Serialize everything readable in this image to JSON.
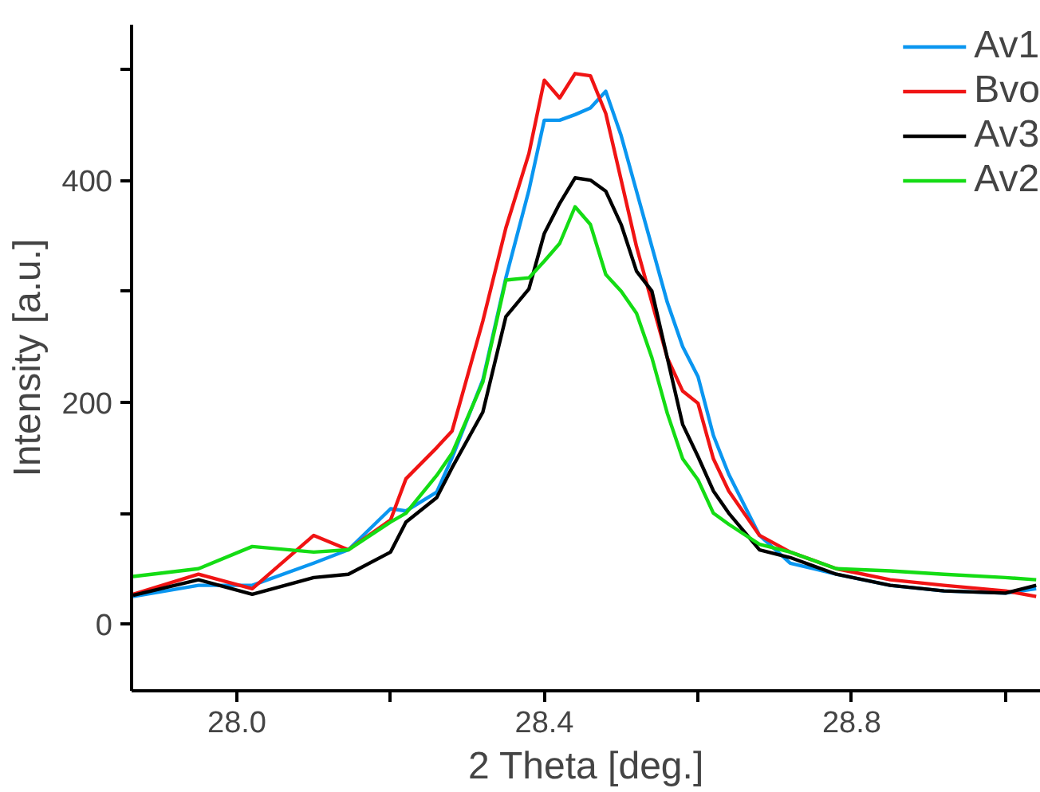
{
  "chart_data": {
    "type": "line",
    "xlabel": "2 Theta [deg.]",
    "ylabel": "Intensity [a.u.]",
    "x": [
      27.865,
      27.95,
      28.02,
      28.1,
      28.145,
      28.2,
      28.22,
      28.26,
      28.28,
      28.32,
      28.35,
      28.38,
      28.4,
      28.42,
      28.44,
      28.46,
      28.48,
      28.5,
      28.52,
      28.54,
      28.56,
      28.58,
      28.6,
      28.62,
      28.64,
      28.68,
      28.72,
      28.78,
      28.85,
      28.92,
      29.0,
      29.04
    ],
    "series": [
      {
        "name": "Av1",
        "color": "#0a96f0",
        "values": [
          25,
          35,
          35,
          55,
          67,
          104,
          102,
          119,
          150,
          220,
          312,
          391,
          454,
          454,
          459,
          465,
          480,
          440,
          390,
          340,
          290,
          250,
          223,
          170,
          135,
          80,
          55,
          45,
          35,
          30,
          28,
          32
        ]
      },
      {
        "name": "Bvo",
        "color": "#f01414",
        "values": [
          27,
          45,
          32,
          80,
          67,
          94,
          131,
          159,
          174,
          273,
          357,
          424,
          490,
          474,
          496,
          494,
          460,
          400,
          340,
          290,
          240,
          210,
          199,
          149,
          120,
          80,
          65,
          50,
          40,
          35,
          30,
          25
        ]
      },
      {
        "name": "Av3",
        "color": "#000000",
        "values": [
          26,
          40,
          27,
          42,
          45,
          65,
          92,
          114,
          141,
          191,
          277,
          302,
          352,
          379,
          402,
          400,
          390,
          360,
          318,
          300,
          240,
          180,
          151,
          120,
          100,
          67,
          60,
          45,
          35,
          30,
          28,
          35
        ]
      },
      {
        "name": "Av2",
        "color": "#14dc14",
        "values": [
          43,
          50,
          70,
          65,
          67,
          92,
          100,
          134,
          154,
          218,
          310,
          312,
          327,
          343,
          376,
          360,
          315,
          300,
          280,
          240,
          190,
          149,
          130,
          100,
          90,
          72,
          65,
          50,
          48,
          45,
          42,
          40
        ]
      }
    ],
    "xlim": [
      27.863,
      29.046
    ],
    "xticks": [
      {
        "value": 28.0,
        "label": "28.0"
      },
      {
        "value": 28.2,
        "label": null
      },
      {
        "value": 28.4,
        "label": "28.4"
      },
      {
        "value": 28.6,
        "label": null
      },
      {
        "value": 28.8,
        "label": "28.8"
      },
      {
        "value": 29.0,
        "label": null
      }
    ],
    "ylim": [
      -60,
      540
    ],
    "yticks": [
      0,
      {
        "value": 100,
        "label": null
      },
      200,
      {
        "value": 300,
        "label": null
      },
      400,
      {
        "value": 500,
        "label": null
      }
    ],
    "grid": false,
    "legend": "top right",
    "marker": "none",
    "line_style": "solid"
  }
}
